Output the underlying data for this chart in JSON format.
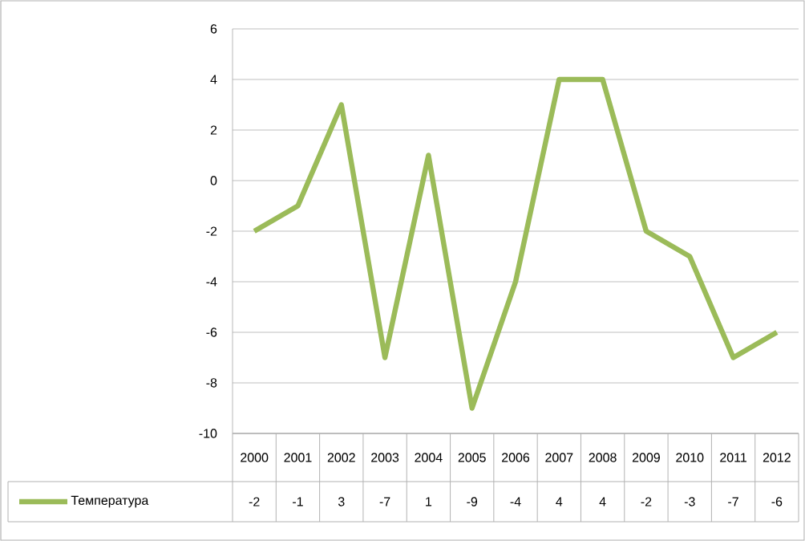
{
  "chart_data": {
    "type": "line",
    "categories": [
      "2000",
      "2001",
      "2002",
      "2003",
      "2004",
      "2005",
      "2006",
      "2007",
      "2008",
      "2009",
      "2010",
      "2011",
      "2012"
    ],
    "series": [
      {
        "name": "Температура",
        "color": "#9bbb59",
        "values": [
          -2,
          -1,
          3,
          -7,
          1,
          -9,
          -4,
          4,
          4,
          -2,
          -3,
          -7,
          -6
        ]
      }
    ],
    "ylim": [
      -10,
      6
    ],
    "yticks": [
      -10,
      -8,
      -6,
      -4,
      -2,
      0,
      2,
      4,
      6
    ],
    "grid": "y",
    "legend": "bottom",
    "data_labels": true,
    "marker": "none",
    "line_style": "solid"
  }
}
